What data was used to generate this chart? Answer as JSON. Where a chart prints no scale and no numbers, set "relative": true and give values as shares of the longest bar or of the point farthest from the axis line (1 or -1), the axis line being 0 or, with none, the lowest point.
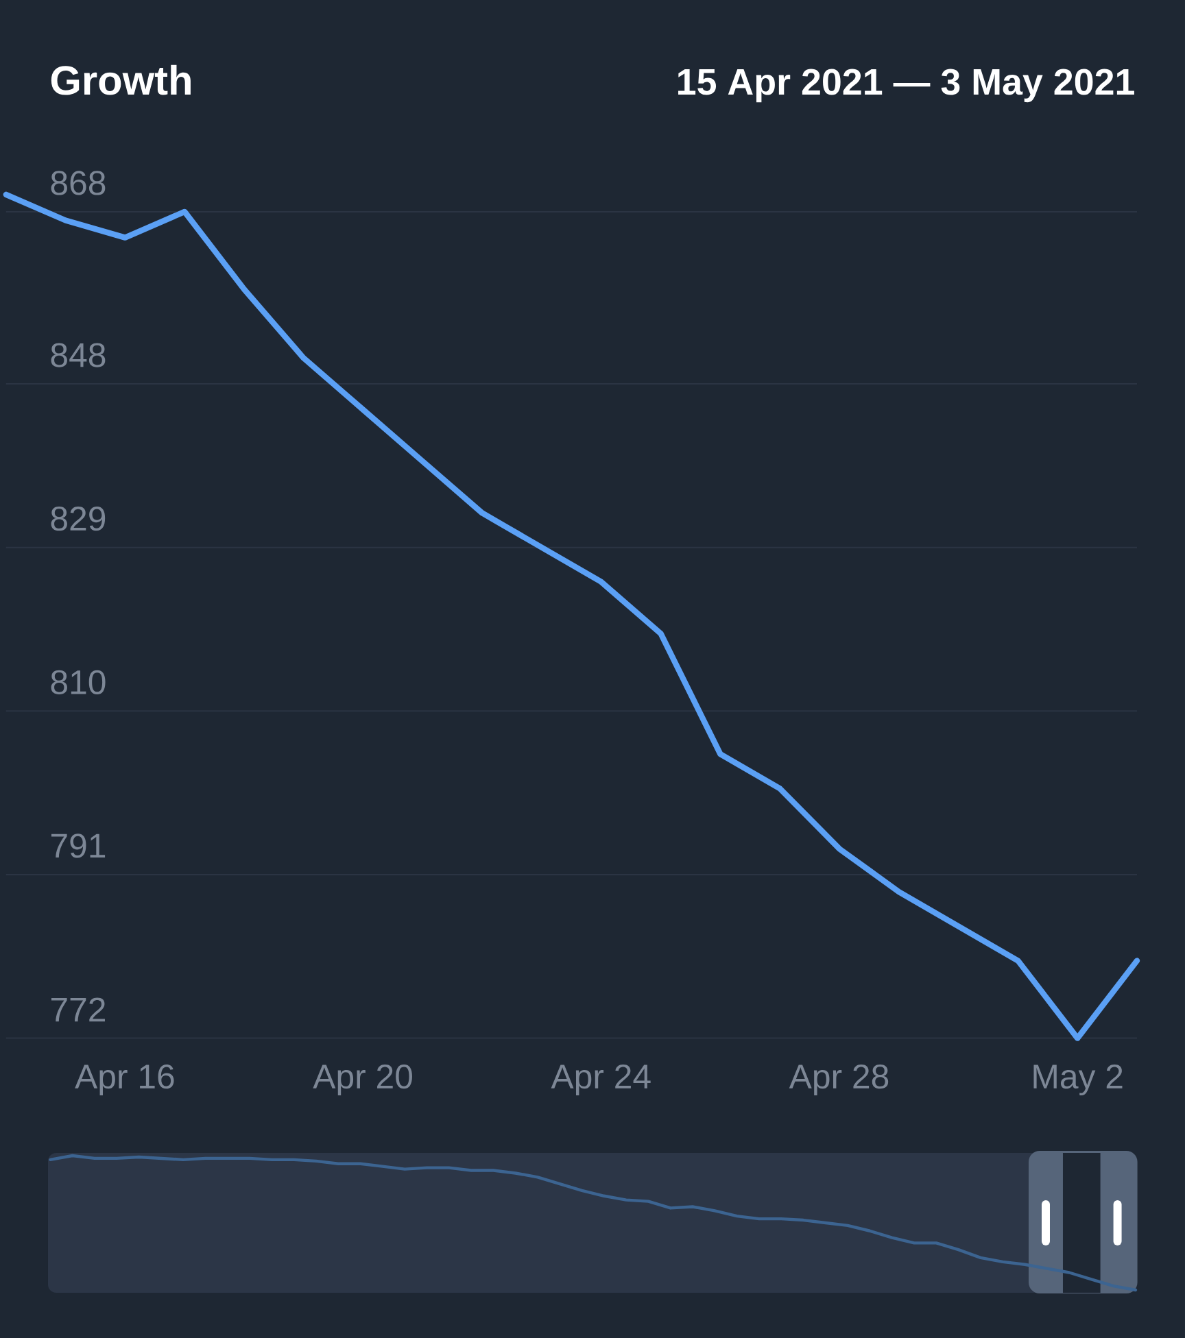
{
  "chart_data": [
    {
      "type": "line",
      "title": "Growth",
      "subtitle": "15 Apr 2021 — 3 May 2021",
      "x": [
        "2021-04-14",
        "2021-04-15",
        "2021-04-16",
        "2021-04-17",
        "2021-04-18",
        "2021-04-19",
        "2021-04-20",
        "2021-04-21",
        "2021-04-22",
        "2021-04-23",
        "2021-04-24",
        "2021-04-25",
        "2021-04-26",
        "2021-04-27",
        "2021-04-28",
        "2021-04-29",
        "2021-04-30",
        "2021-05-01",
        "2021-05-02",
        "2021-05-03"
      ],
      "values": [
        870,
        867,
        865,
        868,
        859,
        851,
        845,
        839,
        833,
        829,
        825,
        819,
        805,
        801,
        794,
        789,
        785,
        781,
        772,
        781
      ],
      "color": "#5ba0f5",
      "xlim": [
        "2021-04-14",
        "2021-05-03"
      ],
      "ylim": [
        772,
        892.6
      ],
      "xticks": [
        {
          "value": "2021-04-16",
          "label": "Apr 16"
        },
        {
          "value": "2021-04-20",
          "label": "Apr 20"
        },
        {
          "value": "2021-04-24",
          "label": "Apr 24"
        },
        {
          "value": "2021-04-28",
          "label": "Apr 28"
        },
        {
          "value": "2021-05-02",
          "label": "May 2"
        }
      ],
      "yticks": [
        772,
        791,
        810,
        829,
        848,
        868
      ],
      "grid": "y"
    },
    {
      "type": "line",
      "relative": true,
      "categories": [
        null,
        null,
        null,
        null,
        null,
        null,
        null,
        null,
        null,
        null,
        null,
        null,
        null,
        null,
        null,
        null,
        null,
        null,
        null,
        null,
        null,
        null,
        null,
        null,
        null,
        null,
        null,
        null,
        null,
        null,
        null,
        null,
        null,
        null,
        null,
        null,
        null,
        null,
        null,
        null,
        null,
        null,
        null,
        null,
        null,
        null,
        null,
        null,
        null,
        null
      ],
      "values": [
        0.97,
        1,
        0.98,
        0.98,
        0.99,
        0.98,
        0.97,
        0.98,
        0.98,
        0.98,
        0.97,
        0.97,
        0.96,
        0.94,
        0.94,
        0.92,
        0.9,
        0.91,
        0.91,
        0.89,
        0.89,
        0.87,
        0.84,
        0.79,
        0.74,
        0.7,
        0.67,
        0.66,
        0.61,
        0.62,
        0.59,
        0.55,
        0.53,
        0.53,
        0.52,
        0.5,
        0.48,
        0.44,
        0.39,
        0.35,
        0.35,
        0.3,
        0.24,
        0.21,
        0.19,
        0.16,
        0.13,
        0.08,
        0.03,
        0
      ],
      "color": "#3c6491"
    }
  ]
}
